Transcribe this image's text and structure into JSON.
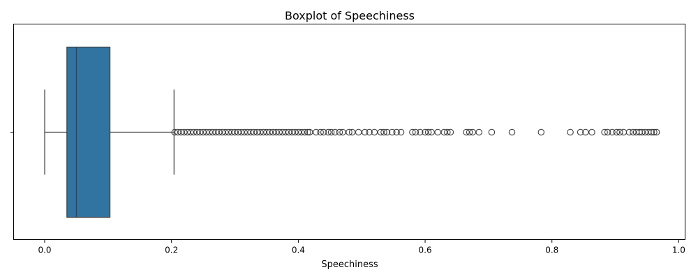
{
  "chart_data": {
    "type": "box",
    "title": "Boxplot of Speechiness",
    "xlabel": "Speechiness",
    "ylabel": "",
    "xlim": [
      -0.049,
      1.01
    ],
    "xticks": [
      0.0,
      0.2,
      0.4,
      0.6,
      0.8,
      1.0
    ],
    "xtick_labels": [
      "0.0",
      "0.2",
      "0.4",
      "0.6",
      "0.8",
      "1.0"
    ],
    "grid": false,
    "box": {
      "whisker_low": 0.0,
      "q1": 0.035,
      "median": 0.05,
      "q3": 0.103,
      "whisker_high": 0.204
    },
    "outliers": [
      0.205,
      0.21,
      0.215,
      0.22,
      0.225,
      0.23,
      0.235,
      0.24,
      0.245,
      0.25,
      0.255,
      0.26,
      0.265,
      0.27,
      0.275,
      0.28,
      0.285,
      0.29,
      0.295,
      0.3,
      0.305,
      0.31,
      0.315,
      0.32,
      0.325,
      0.33,
      0.335,
      0.34,
      0.345,
      0.35,
      0.355,
      0.36,
      0.365,
      0.37,
      0.375,
      0.38,
      0.385,
      0.39,
      0.395,
      0.4,
      0.405,
      0.41,
      0.415,
      0.418,
      0.428,
      0.435,
      0.44,
      0.447,
      0.452,
      0.458,
      0.465,
      0.47,
      0.48,
      0.485,
      0.495,
      0.505,
      0.512,
      0.52,
      0.53,
      0.535,
      0.54,
      0.548,
      0.555,
      0.562,
      0.58,
      0.585,
      0.592,
      0.6,
      0.605,
      0.61,
      0.62,
      0.63,
      0.635,
      0.64,
      0.665,
      0.67,
      0.675,
      0.685,
      0.705,
      0.737,
      0.783,
      0.829,
      0.845,
      0.853,
      0.863,
      0.883,
      0.888,
      0.895,
      0.902,
      0.907,
      0.913,
      0.922,
      0.928,
      0.933,
      0.938,
      0.942,
      0.947,
      0.952,
      0.957,
      0.961,
      0.965
    ],
    "colors": {
      "box_fill": "#3274a1",
      "line": "#3d3d3d",
      "outlier_edge": "#3d3d3d"
    }
  }
}
